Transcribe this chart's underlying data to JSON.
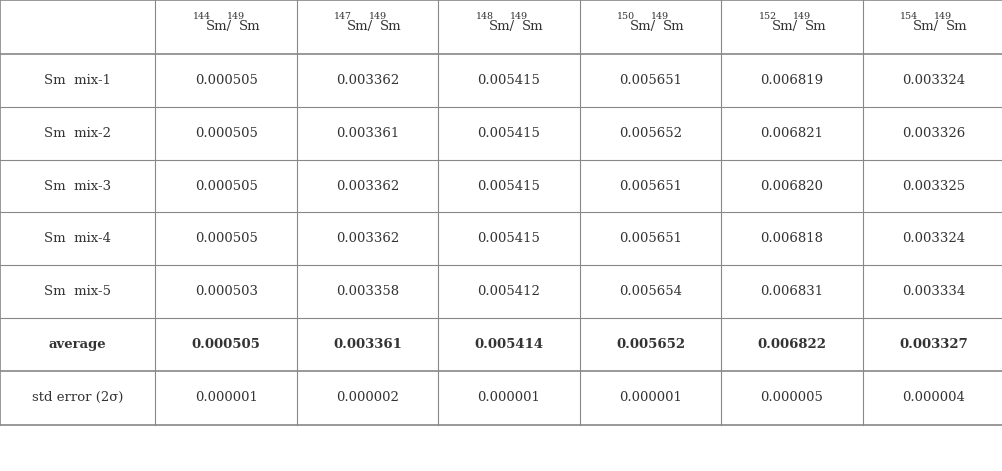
{
  "col_headers": [
    "144Sm/149Sm",
    "147Sm/149Sm",
    "148Sm/149Sm",
    "150Sm/149Sm",
    "152Sm/149Sm",
    "154Sm/149Sm"
  ],
  "col_headers_display": [
    {
      "pre": "144",
      "main": "Sm/",
      "pre2": "149",
      "main2": "Sm"
    },
    {
      "pre": "147",
      "main": "Sm/",
      "pre2": "149",
      "main2": "Sm"
    },
    {
      "pre": "148",
      "main": "Sm/",
      "pre2": "149",
      "main2": "Sm"
    },
    {
      "pre": "150",
      "main": "Sm/",
      "pre2": "149",
      "main2": "Sm"
    },
    {
      "pre": "152",
      "main": "Sm/",
      "pre2": "149",
      "main2": "Sm"
    },
    {
      "pre": "154",
      "main": "Sm/",
      "pre2": "149",
      "main2": "Sm"
    }
  ],
  "row_labels": [
    "Sm  mix-1",
    "Sm  mix-2",
    "Sm  mix-3",
    "Sm  mix-4",
    "Sm  mix-5",
    "average",
    "std error (2σ)"
  ],
  "data": [
    [
      "0.000505",
      "0.003362",
      "0.005415",
      "0.005651",
      "0.006819",
      "0.003324"
    ],
    [
      "0.000505",
      "0.003361",
      "0.005415",
      "0.005652",
      "0.006821",
      "0.003326"
    ],
    [
      "0.000505",
      "0.003362",
      "0.005415",
      "0.005651",
      "0.006820",
      "0.003325"
    ],
    [
      "0.000505",
      "0.003362",
      "0.005415",
      "0.005651",
      "0.006818",
      "0.003324"
    ],
    [
      "0.000503",
      "0.003358",
      "0.005412",
      "0.005654",
      "0.006831",
      "0.003334"
    ],
    [
      "0.000505",
      "0.003361",
      "0.005414",
      "0.005652",
      "0.006822",
      "0.003327"
    ],
    [
      "0.000001",
      "0.000002",
      "0.000001",
      "0.000001",
      "0.000005",
      "0.000004"
    ]
  ],
  "bold_row_index": 5,
  "background_color": "#ffffff",
  "line_color": "#888888",
  "text_color": "#333333",
  "font_size": 9.5,
  "header_font_size": 9.0
}
